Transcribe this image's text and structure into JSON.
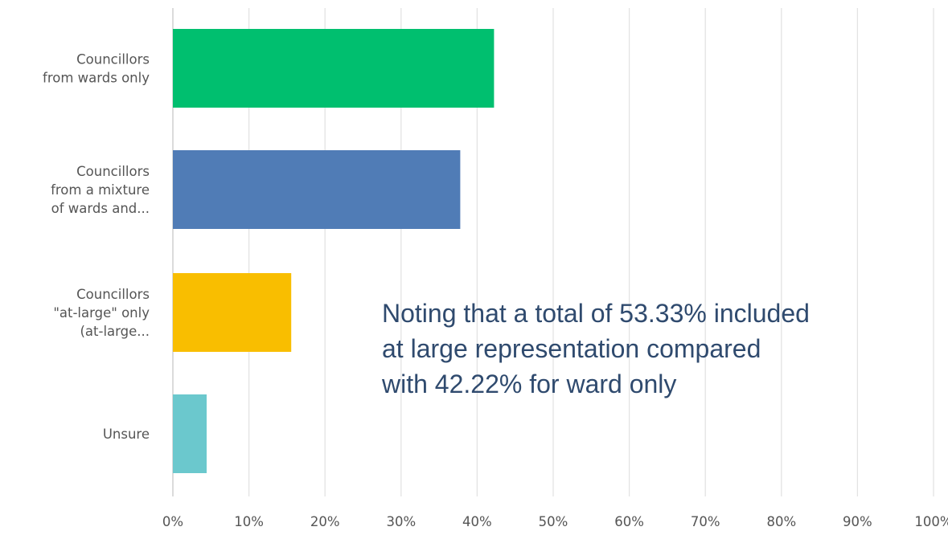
{
  "chart_data": {
    "type": "bar",
    "orientation": "horizontal",
    "categories": [
      [
        "Councillors",
        "from wards only"
      ],
      [
        "Councillors",
        "from a mixture",
        "of wards and..."
      ],
      [
        "Councillors",
        "\"at-large\" only",
        "(at-large..."
      ],
      [
        "Unsure"
      ]
    ],
    "values": [
      42.22,
      37.78,
      15.56,
      4.44
    ],
    "colors": [
      "#00bf6f",
      "#507cb6",
      "#f9be00",
      "#6bc8cd"
    ],
    "xlim": [
      0,
      100
    ],
    "x_ticks": [
      "0%",
      "10%",
      "20%",
      "30%",
      "40%",
      "50%",
      "60%",
      "70%",
      "80%",
      "90%",
      "100%"
    ],
    "grid": "vertical",
    "legend": "none"
  },
  "annotation": {
    "lines": [
      "Noting that a total of 53.33% included",
      "at large representation compared",
      "with 42.22% for ward only"
    ]
  }
}
